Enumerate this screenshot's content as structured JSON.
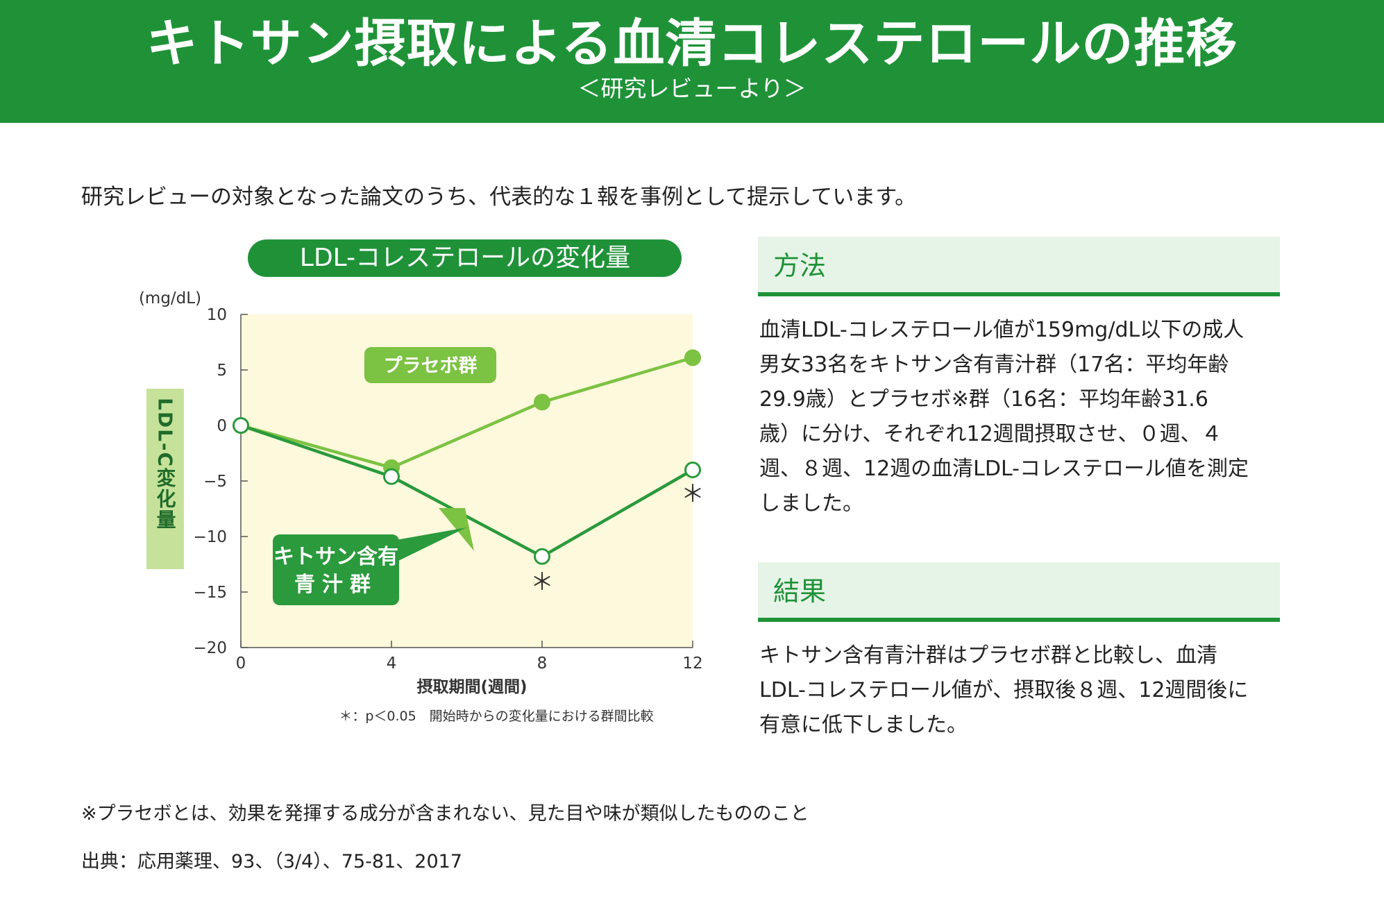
{
  "header": {
    "title": "キトサン摂取による血清コレステロールの推移",
    "subtitle": "＜研究レビューより＞"
  },
  "intro": "研究レビューの対象となった論文のうち、代表的な１報を事例として提示しています。",
  "chart_data": {
    "type": "line",
    "title": "LDL-コレステロールの変化量",
    "ylabel": "LDL-C変化量",
    "yunit": "(mg/dL)",
    "xlabel": "摂取期間(週間)",
    "x": [
      0,
      4,
      8,
      12
    ],
    "xticks": [
      "0",
      "4",
      "8",
      "12"
    ],
    "yticks": [
      "10",
      "5",
      "0",
      "−5",
      "−10",
      "−15",
      "−20"
    ],
    "ylim": [
      -20,
      10
    ],
    "xlim": [
      0,
      12
    ],
    "grid": false,
    "series": [
      {
        "name": "プラセボ群",
        "values": [
          0,
          -3.8,
          2.1,
          6.1
        ],
        "color": "#7cc243"
      },
      {
        "name": "キトサン含有青汁群",
        "values": [
          0,
          -4.6,
          -11.8,
          -4.0
        ],
        "color": "#2a9a3c",
        "significant": [
          false,
          false,
          true,
          true
        ]
      }
    ],
    "significance_mark": "＊",
    "note": "＊：p＜0.05　開始時からの変化量における群間比較",
    "plot_bg": "#fdf9dc",
    "title_bg": "#1f9238",
    "ylabel_bg": "#c6e29a"
  },
  "method": {
    "heading": "方法",
    "lines": [
      "血清LDL-コレステロール値が159mg/dL以下の成人",
      "男女33名をキトサン含有青汁群（17名：平均年齢",
      "29.9歳）とプラセボ※群（16名：平均年齢31.6",
      "歳）に分け、それぞれ12週間摂取させ、０週、４",
      "週、８週、12週の血清LDL-コレステロール値を測定",
      "しました。"
    ]
  },
  "result": {
    "heading": "結果",
    "lines": [
      "キトサン含有青汁群はプラセボ群と比較し、血清",
      "LDL-コレステロール値が、摂取後８週、12週間後に",
      "有意に低下しました。"
    ]
  },
  "footnotes": {
    "placebo": "※プラセボとは、効果を発揮する成分が含まれない、見た目や味が類似したもののこと",
    "source": "出典：応用薬理、93、（3/4）、75-81、2017"
  }
}
